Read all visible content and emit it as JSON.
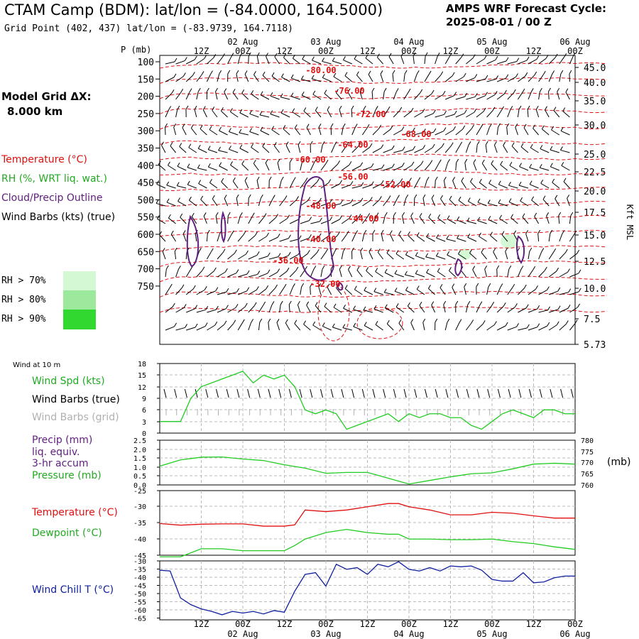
{
  "header": {
    "title": "CTAM Camp (BDM):  lat/lon = (-84.0000, 164.5000)",
    "grid_point": "Grid Point (402, 437) lat/lon = (-83.9739, 164.7118)",
    "cycle_line1": "AMPS WRF Forecast Cycle:",
    "cycle_line2": "2025-08-01 / 00  Z"
  },
  "model": {
    "dx_label": "Model Grid ΔX:",
    "dx_value": "8.000 km"
  },
  "legend": {
    "temperature": "Temperature (°C)",
    "rh": "RH (%, WRT liq. wat.)",
    "cloud": "Cloud/Precip Outline",
    "wind": "Wind Barbs (kts) (true)",
    "rh70": "RH > 70%",
    "rh80": "RH > 80%",
    "rh90": "RH > 90%"
  },
  "colors": {
    "red": "#e01010",
    "green": "#22cc22",
    "purple": "#602080",
    "blue": "#1020a0",
    "gray": "#b0b0b0",
    "rh70": "#d4f8d4",
    "rh80": "#9ce89c",
    "rh90": "#30d830"
  },
  "lower_panels": {
    "wind10m": "Wind at 10 m",
    "wind_spd": "Wind Spd (kts)",
    "wind_barbs_true": "Wind Barbs (true)",
    "wind_barbs_grid": "Wind Barbs (grid)",
    "precip1": "Precip (mm)",
    "precip2": "liq. equiv.",
    "precip3": "3-hr accum",
    "pressure": "Pressure (mb)",
    "pressure_unit": "(mb)",
    "temperature": "Temperature (°C)",
    "dewpoint": "Dewpoint (°C)",
    "wind_chill": "Wind Chill T (°C)"
  },
  "chart_data": {
    "time_axis": {
      "hour_labels": [
        "12Z",
        "00Z",
        "12Z",
        "00Z",
        "12Z",
        "00Z",
        "12Z",
        "00Z",
        "12Z",
        "00Z"
      ],
      "date_labels": [
        "02 Aug",
        "03 Aug",
        "04 Aug",
        "05 Aug",
        "06 Aug"
      ],
      "hours": [
        12,
        24,
        36,
        48,
        60,
        72,
        84,
        96,
        108,
        120
      ]
    },
    "profile": {
      "type": "time-height cross section",
      "ylabel": "P (mb)",
      "pressure_ticks": [
        "100",
        "150",
        "200",
        "250",
        "300",
        "350",
        "400",
        "450",
        "500",
        "550",
        "600",
        "650",
        "700",
        "750"
      ],
      "height_ticks": [
        "45.0",
        "40.0",
        "35.0",
        "30.0",
        "25.0",
        "22.5",
        "20.0",
        "17.5",
        "15.0",
        "12.5",
        "10.0",
        "7.5",
        "5.73"
      ],
      "height_label": "Kft MSL",
      "temperature_labels": [
        "-80.00",
        "-76.00",
        "-72.00",
        "-68.00",
        "-64.00",
        "-60.00",
        "-56.00",
        "-52.00",
        "-48.00",
        "-44.00",
        "-40.00",
        "-36.00",
        "-32.00"
      ]
    },
    "wind": {
      "type": "line",
      "yticks": [
        "18",
        "15",
        "12",
        "9",
        "6",
        "3",
        "0"
      ],
      "ylim": [
        0,
        18
      ],
      "hours": [
        0,
        6,
        9,
        12,
        15,
        18,
        21,
        24,
        27,
        30,
        33,
        36,
        39,
        42,
        45,
        48,
        51,
        54,
        57,
        60,
        63,
        66,
        69,
        72,
        75,
        78,
        81,
        84,
        87,
        90,
        93,
        96,
        99,
        102,
        105,
        108,
        111,
        114,
        117,
        120
      ],
      "speed_kts": [
        3,
        3,
        9,
        12,
        13,
        14,
        15,
        16,
        13,
        15,
        14,
        15,
        12,
        6,
        5,
        6,
        5,
        1,
        2,
        3,
        4,
        5,
        3,
        5,
        4,
        5,
        5,
        4,
        4,
        2,
        1,
        3,
        5,
        6,
        5,
        4,
        6,
        6,
        5,
        5
      ]
    },
    "pressure": {
      "type": "line",
      "precip_ticks": [
        "2.5",
        "2.0",
        "1.5",
        "1.0",
        "0.5",
        "0.0"
      ],
      "pressure_ticks": [
        "780",
        "775",
        "770",
        "765",
        "760"
      ],
      "ylim": [
        760,
        780
      ],
      "hours": [
        0,
        6,
        12,
        18,
        24,
        30,
        36,
        42,
        48,
        54,
        60,
        66,
        72,
        78,
        84,
        90,
        96,
        102,
        108,
        114,
        120
      ],
      "pressure_mb": [
        768.4,
        771.2,
        772.4,
        772.5,
        771.6,
        770.9,
        769.0,
        767.5,
        765.2,
        765.6,
        765.6,
        763.0,
        760.4,
        762.0,
        763.6,
        765.0,
        765.4,
        767.2,
        769.3,
        769.7,
        769.3
      ]
    },
    "temperature": {
      "type": "line",
      "yticks": [
        "-25",
        "-30",
        "-35",
        "-40",
        "-45"
      ],
      "ylim": [
        -45,
        -25
      ],
      "hours": [
        0,
        6,
        12,
        18,
        24,
        30,
        36,
        39,
        42,
        48,
        54,
        60,
        66,
        69,
        72,
        78,
        84,
        90,
        96,
        102,
        108,
        114,
        120
      ],
      "temperature_c": [
        -35.2,
        -35.7,
        -35.4,
        -35.3,
        -35.3,
        -36,
        -36,
        -35.6,
        -31,
        -31.5,
        -31,
        -30,
        -29,
        -29,
        -30,
        -31,
        -32.5,
        -32.5,
        -31.7,
        -32,
        -32.8,
        -33.5,
        -33.5
      ],
      "dewpoint_c": [
        -45.5,
        -45.5,
        -43,
        -43,
        -43.6,
        -43.6,
        -43.6,
        -42,
        -40,
        -38,
        -37,
        -38,
        -38.5,
        -38.5,
        -40,
        -40,
        -40.2,
        -40.2,
        -40,
        -40.8,
        -41.4,
        -42.4,
        -43.2
      ]
    },
    "wind_chill": {
      "type": "line",
      "yticks": [
        "-30",
        "-35",
        "-40",
        "-45",
        "-50",
        "-55",
        "-60",
        "-65"
      ],
      "ylim": [
        -65,
        -30
      ],
      "hours": [
        0,
        3,
        6,
        9,
        12,
        15,
        18,
        21,
        24,
        27,
        30,
        33,
        36,
        39,
        42,
        45,
        48,
        51,
        54,
        57,
        60,
        63,
        66,
        69,
        72,
        75,
        78,
        81,
        84,
        87,
        90,
        93,
        96,
        99,
        102,
        105,
        108,
        111,
        114,
        117,
        120
      ],
      "wind_chill_c": [
        -35.5,
        -36,
        -52,
        -56,
        -58.5,
        -60,
        -62,
        -60,
        -61,
        -60,
        -61.5,
        -59.5,
        -60.5,
        -48,
        -38,
        -37,
        -45,
        -32,
        -35,
        -34,
        -38,
        -32,
        -33.5,
        -30.5,
        -35,
        -36,
        -34,
        -36,
        -33,
        -33.5,
        -33,
        -35.5,
        -41,
        -42,
        -42,
        -37,
        -43,
        -42.5,
        -40,
        -39,
        -39
      ]
    }
  }
}
